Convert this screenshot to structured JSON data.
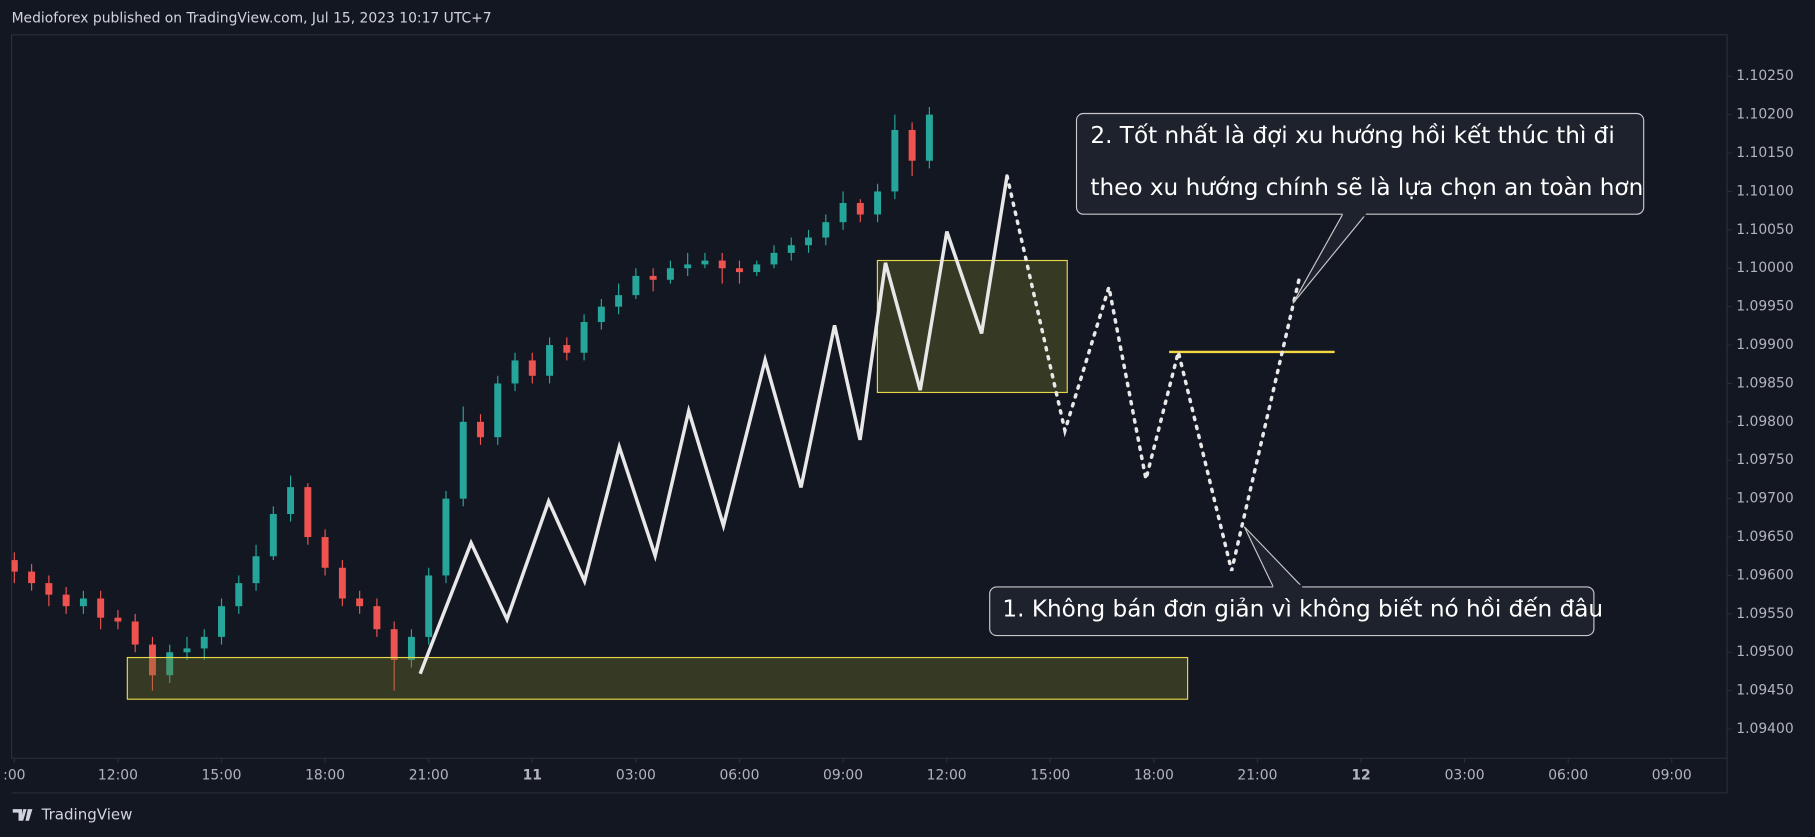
{
  "header": "Medioforex published on TradingView.com, Jul 15, 2023 10:17 UTC+7",
  "footer": "TradingView",
  "chart_data": {
    "type": "candlestick",
    "x": [
      9,
      9.5,
      10,
      10.5,
      11,
      11.5,
      12,
      12.5,
      13,
      13.5,
      14,
      14.5,
      15,
      15.5,
      16,
      16.5,
      17,
      17.5,
      18,
      18.5,
      19,
      19.5,
      20,
      20.5,
      21,
      21.5,
      22,
      22.5,
      23,
      23.5,
      24,
      24.5,
      25,
      25.5,
      26,
      26.5,
      27,
      27.5,
      28,
      28.5,
      29,
      29.5,
      30,
      30.5,
      31,
      31.5,
      32,
      32.5,
      33,
      33.5,
      34,
      34.5,
      35,
      35.5
    ],
    "open": [
      1.0962,
      1.09605,
      1.0959,
      1.09575,
      1.0956,
      1.0957,
      1.09545,
      1.0954,
      1.0951,
      1.0947,
      1.095,
      1.09505,
      1.0952,
      1.0956,
      1.0959,
      1.09625,
      1.0968,
      1.09715,
      1.0965,
      1.0961,
      1.0957,
      1.0956,
      1.0953,
      1.0949,
      1.0952,
      1.096,
      1.097,
      1.098,
      1.0978,
      1.0985,
      1.0988,
      1.0986,
      1.099,
      1.0989,
      1.0993,
      1.0995,
      1.09965,
      1.0999,
      1.09985,
      1.1,
      1.10005,
      1.1001,
      1.1,
      1.09995,
      1.10005,
      1.1002,
      1.1003,
      1.1004,
      1.1006,
      1.10085,
      1.1007,
      1.101,
      1.1018,
      1.1014
    ],
    "high": [
      1.0963,
      1.09615,
      1.096,
      1.09585,
      1.0958,
      1.0958,
      1.09555,
      1.0955,
      1.0952,
      1.0951,
      1.0952,
      1.0953,
      1.0957,
      1.096,
      1.0964,
      1.0969,
      1.0973,
      1.0972,
      1.0966,
      1.0962,
      1.0958,
      1.0957,
      1.0954,
      1.0953,
      1.0961,
      1.0971,
      1.0982,
      1.0981,
      1.0986,
      1.0989,
      1.0989,
      1.0991,
      1.0991,
      1.0994,
      1.0996,
      1.0998,
      1.1,
      1.1,
      1.1001,
      1.1002,
      1.1002,
      1.1002,
      1.1001,
      1.1001,
      1.1003,
      1.1004,
      1.1005,
      1.1007,
      1.101,
      1.1009,
      1.1011,
      1.102,
      1.1019,
      1.1021
    ],
    "low": [
      1.0959,
      1.0958,
      1.0956,
      1.0955,
      1.0955,
      1.0953,
      1.0953,
      1.095,
      1.0945,
      1.0946,
      1.0949,
      1.0949,
      1.0951,
      1.0955,
      1.0958,
      1.0962,
      1.0967,
      1.0964,
      1.096,
      1.0956,
      1.0955,
      1.0952,
      1.0945,
      1.0948,
      1.0951,
      1.0959,
      1.0969,
      1.0977,
      1.0977,
      1.0984,
      1.0985,
      1.0985,
      1.0988,
      1.0988,
      1.0992,
      1.0994,
      1.0996,
      1.0997,
      1.0998,
      1.0999,
      1.1,
      1.0998,
      1.0998,
      1.0999,
      1.1,
      1.1001,
      1.1002,
      1.1003,
      1.1005,
      1.1006,
      1.1006,
      1.1009,
      1.1012,
      1.1013
    ],
    "close": [
      1.09605,
      1.0959,
      1.09575,
      1.0956,
      1.0957,
      1.09545,
      1.0954,
      1.0951,
      1.0947,
      1.095,
      1.09505,
      1.0952,
      1.0956,
      1.0959,
      1.09625,
      1.0968,
      1.09715,
      1.0965,
      1.0961,
      1.0957,
      1.0956,
      1.0953,
      1.0949,
      1.0952,
      1.096,
      1.097,
      1.098,
      1.0978,
      1.0985,
      1.0988,
      1.0986,
      1.099,
      1.0989,
      1.0993,
      1.0995,
      1.09965,
      1.0999,
      1.09985,
      1.1,
      1.10005,
      1.1001,
      1.1,
      1.09995,
      1.10005,
      1.1002,
      1.1003,
      1.1004,
      1.1006,
      1.10085,
      1.1007,
      1.101,
      1.1018,
      1.1014,
      1.102
    ],
    "up_color": "#26a69a",
    "down_color": "#ef5350",
    "xlim": [
      8.92,
      58.6
    ],
    "xticks": [
      {
        "value": 9,
        "label": ":00"
      },
      {
        "value": 12,
        "label": "12:00"
      },
      {
        "value": 15,
        "label": "15:00"
      },
      {
        "value": 18,
        "label": "18:00"
      },
      {
        "value": 21,
        "label": "21:00"
      },
      {
        "value": 24,
        "label": "11"
      },
      {
        "value": 27,
        "label": "03:00"
      },
      {
        "value": 30,
        "label": "06:00"
      },
      {
        "value": 33,
        "label": "09:00"
      },
      {
        "value": 36,
        "label": "12:00"
      },
      {
        "value": 39,
        "label": "15:00"
      },
      {
        "value": 42,
        "label": "18:00"
      },
      {
        "value": 45,
        "label": "21:00"
      },
      {
        "value": 48,
        "label": "12"
      },
      {
        "value": 51,
        "label": "03:00"
      },
      {
        "value": 54,
        "label": "06:00"
      },
      {
        "value": 57,
        "label": "09:00"
      }
    ],
    "ylim": [
      1.09362,
      1.10304
    ],
    "yticks": [
      {
        "value": 1.1025,
        "label": "1.10250"
      },
      {
        "value": 1.102,
        "label": "1.10200"
      },
      {
        "value": 1.1015,
        "label": "1.10150"
      },
      {
        "value": 1.101,
        "label": "1.10100"
      },
      {
        "value": 1.1005,
        "label": "1.10050"
      },
      {
        "value": 1.1,
        "label": "1.10000"
      },
      {
        "value": 1.0995,
        "label": "1.09950"
      },
      {
        "value": 1.099,
        "label": "1.09900"
      },
      {
        "value": 1.0985,
        "label": "1.09850"
      },
      {
        "value": 1.098,
        "label": "1.09800"
      },
      {
        "value": 1.0975,
        "label": "1.09750"
      },
      {
        "value": 1.097,
        "label": "1.09700"
      },
      {
        "value": 1.0965,
        "label": "1.09650"
      },
      {
        "value": 1.096,
        "label": "1.09600"
      },
      {
        "value": 1.0955,
        "label": "1.09550"
      },
      {
        "value": 1.095,
        "label": "1.09500"
      },
      {
        "value": 1.0945,
        "label": "1.09450"
      },
      {
        "value": 1.094,
        "label": "1.09400"
      }
    ],
    "annotations": [
      [
        "2. Tốt nhất là đợi xu hướng hồi kết thúc thì đi",
        "theo xu hướng chính sẽ là lựa chọn an toàn hơn"
      ],
      [
        "1. Không bán đơn giản vì không biết nó hồi đến đâu"
      ]
    ]
  }
}
